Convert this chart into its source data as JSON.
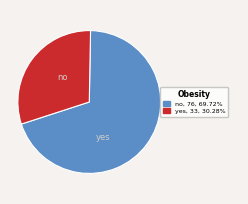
{
  "title": "Obesity",
  "labels": [
    "no",
    "yes"
  ],
  "values": [
    69.72,
    30.28
  ],
  "counts": [
    76,
    33
  ],
  "colors": [
    "#5b8ec7",
    "#cc2b2e"
  ],
  "legend_labels": [
    "no, 76, 69.72%",
    "yes, 33, 30.28%"
  ],
  "startangle": 198,
  "background_color": "#f5f2ef",
  "label_color": "#d0ccc8",
  "edge_color": "white"
}
